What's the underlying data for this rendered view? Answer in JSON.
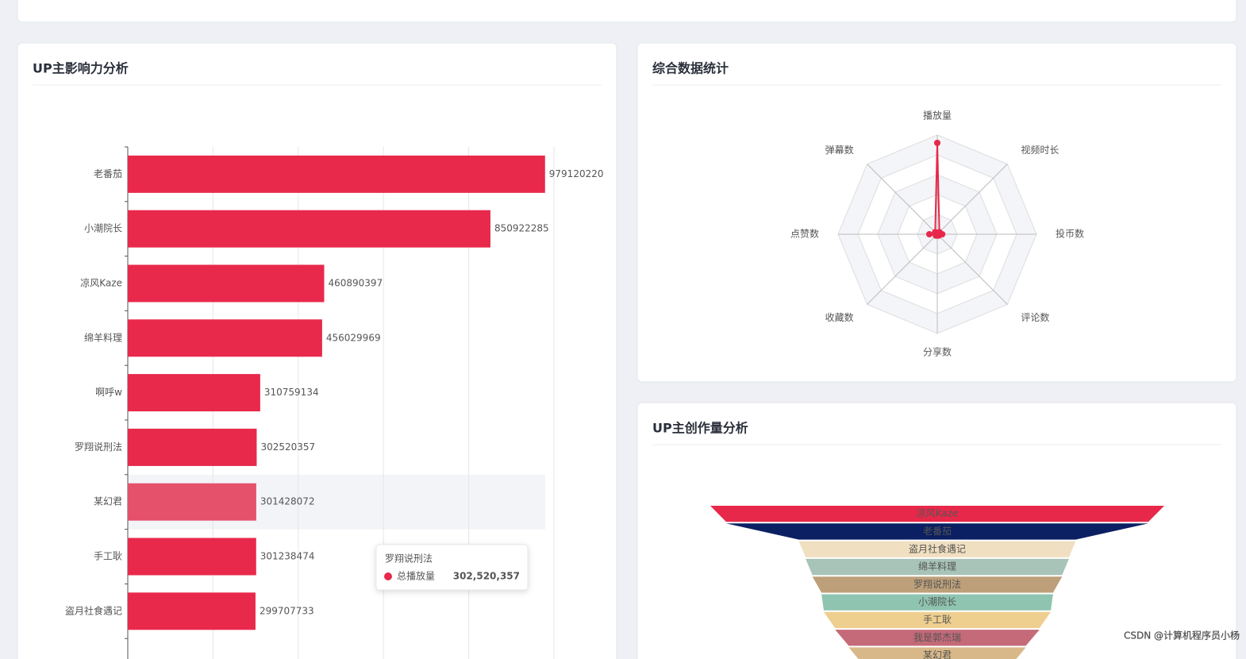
{
  "chart_data": [
    {
      "type": "bar",
      "title": "UP主影响力分析",
      "orientation": "horizontal",
      "categories": [
        "老番茄",
        "小潮院长",
        "凉风Kaze",
        "绵羊料理",
        "啊呼w",
        "罗翔说刑法",
        "某幻君",
        "手工耿",
        "盗月社食遇记"
      ],
      "series": [
        {
          "name": "总播放量",
          "color": "#e8294b",
          "values": [
            979120220,
            850922285,
            460890397,
            456029969,
            310759134,
            302520357,
            301428072,
            301238474,
            299707733
          ]
        }
      ],
      "xlim": [
        0,
        1000000000
      ],
      "xticks": [
        0,
        200000000,
        400000000,
        600000000,
        800000000,
        1000000000
      ],
      "grid": true,
      "tooltip": {
        "category": "罗翔说刑法",
        "value_label": "302,520,357"
      }
    },
    {
      "type": "radar",
      "title": "综合数据统计",
      "indicators": [
        "播放量",
        "视频时长",
        "投币数",
        "评论数",
        "分享数",
        "收藏数",
        "点赞数",
        "弹幕数"
      ],
      "series": [
        {
          "color": "#e8284a",
          "values": [
            0.92,
            0.03,
            0.05,
            0.02,
            0.01,
            0.02,
            0.08,
            0.03
          ]
        }
      ],
      "rlim": [
        0,
        1
      ],
      "rticks": [
        0.2,
        0.4,
        0.6,
        0.8,
        1
      ]
    },
    {
      "type": "funnel",
      "title": "UP主创作量分析",
      "categories": [
        "凉风Kaze",
        "老番茄",
        "盗月社食遇记",
        "绵羊料理",
        "罗翔说刑法",
        "小潮院长",
        "手工耿",
        "我是郭杰瑞",
        "某幻君"
      ],
      "values": [
        100,
        93,
        61,
        58,
        55,
        51,
        50,
        45,
        39
      ],
      "colors": [
        "#e8284a",
        "#0b2062",
        "#f0dfc0",
        "#a8c3b8",
        "#bda07a",
        "#8fc4b0",
        "#efcf8f",
        "#c46a78",
        "#d8b888"
      ]
    }
  ],
  "watermark": "CSDN @计算机程序员小杨"
}
